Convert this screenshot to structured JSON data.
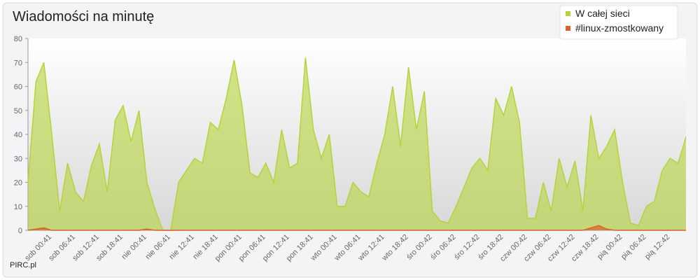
{
  "chart_data": {
    "type": "area",
    "title": "Wiadomości na minutę",
    "footer": "PIRC.pl",
    "categories": [
      null,
      null,
      null,
      "sob 00:41",
      null,
      null,
      "sob 06:41",
      null,
      null,
      "sob 12:41",
      null,
      null,
      "sob 18:41",
      null,
      null,
      "nie 00:41",
      null,
      null,
      "nie 06:41",
      null,
      null,
      "nie 12:41",
      null,
      null,
      "nie 18:41",
      null,
      null,
      "pon 00:41",
      null,
      null,
      "pon 06:41",
      null,
      null,
      "pon 12:41",
      null,
      null,
      "pon 18:41",
      null,
      null,
      "wto 00:41",
      null,
      null,
      "wto 06:41",
      null,
      null,
      "wto 12:41",
      null,
      null,
      "wto 18:42",
      null,
      null,
      "śro 00:42",
      null,
      null,
      "śro 06:42",
      null,
      null,
      "śro 12:42",
      null,
      null,
      "śro 18:42",
      null,
      null,
      "czw 00:42",
      null,
      null,
      "czw 06:42",
      null,
      null,
      "czw 12:42",
      null,
      null,
      "czw 18:42",
      null,
      null,
      "pią 00:42",
      null,
      null,
      "pią 06:42",
      null,
      null,
      "pią 12:42",
      null,
      null
    ],
    "series": [
      {
        "name": "W całej sieci",
        "color": "#b5d33a",
        "values": [
          20,
          62,
          70,
          40,
          8,
          28,
          16,
          12,
          27,
          36,
          16,
          46,
          52,
          37,
          50,
          20,
          9,
          0,
          0,
          20,
          25,
          30,
          28,
          45,
          42,
          55,
          71,
          52,
          24,
          22,
          28,
          20,
          42,
          26,
          28,
          72,
          42,
          30,
          40,
          10,
          10,
          20,
          16,
          14,
          28,
          40,
          60,
          35,
          68,
          42,
          58,
          8,
          4,
          3,
          10,
          18,
          26,
          30,
          25,
          55,
          48,
          60,
          45,
          5,
          5,
          20,
          8,
          30,
          18,
          29,
          8,
          48,
          30,
          35,
          42,
          20,
          3,
          2,
          10,
          12,
          25,
          30,
          28,
          39
        ]
      },
      {
        "name": "#linux-zmostkowany",
        "color": "#d9622b",
        "values": [
          0,
          0.5,
          1,
          0,
          0,
          0,
          0,
          0,
          0,
          0,
          0,
          0,
          0,
          0,
          0,
          0.5,
          0,
          0,
          0,
          0,
          0,
          0,
          0,
          0,
          0,
          0,
          0,
          0,
          0,
          0,
          0,
          0,
          0,
          0,
          0,
          0,
          0,
          0,
          0,
          0,
          0,
          0,
          0,
          0,
          0,
          0,
          0,
          0,
          0,
          0,
          0,
          0,
          0,
          0,
          0,
          0,
          0,
          0,
          0,
          0,
          0,
          0,
          0,
          0,
          0,
          0,
          0,
          0,
          0,
          0,
          0,
          1,
          2,
          0.5,
          0,
          0,
          0,
          0,
          0,
          0,
          0,
          0,
          0,
          0
        ]
      }
    ],
    "ylim": [
      0,
      80
    ],
    "yticks": [
      0,
      10,
      20,
      30,
      40,
      50,
      60,
      70,
      80
    ],
    "grid": false,
    "legend": "top-right"
  }
}
